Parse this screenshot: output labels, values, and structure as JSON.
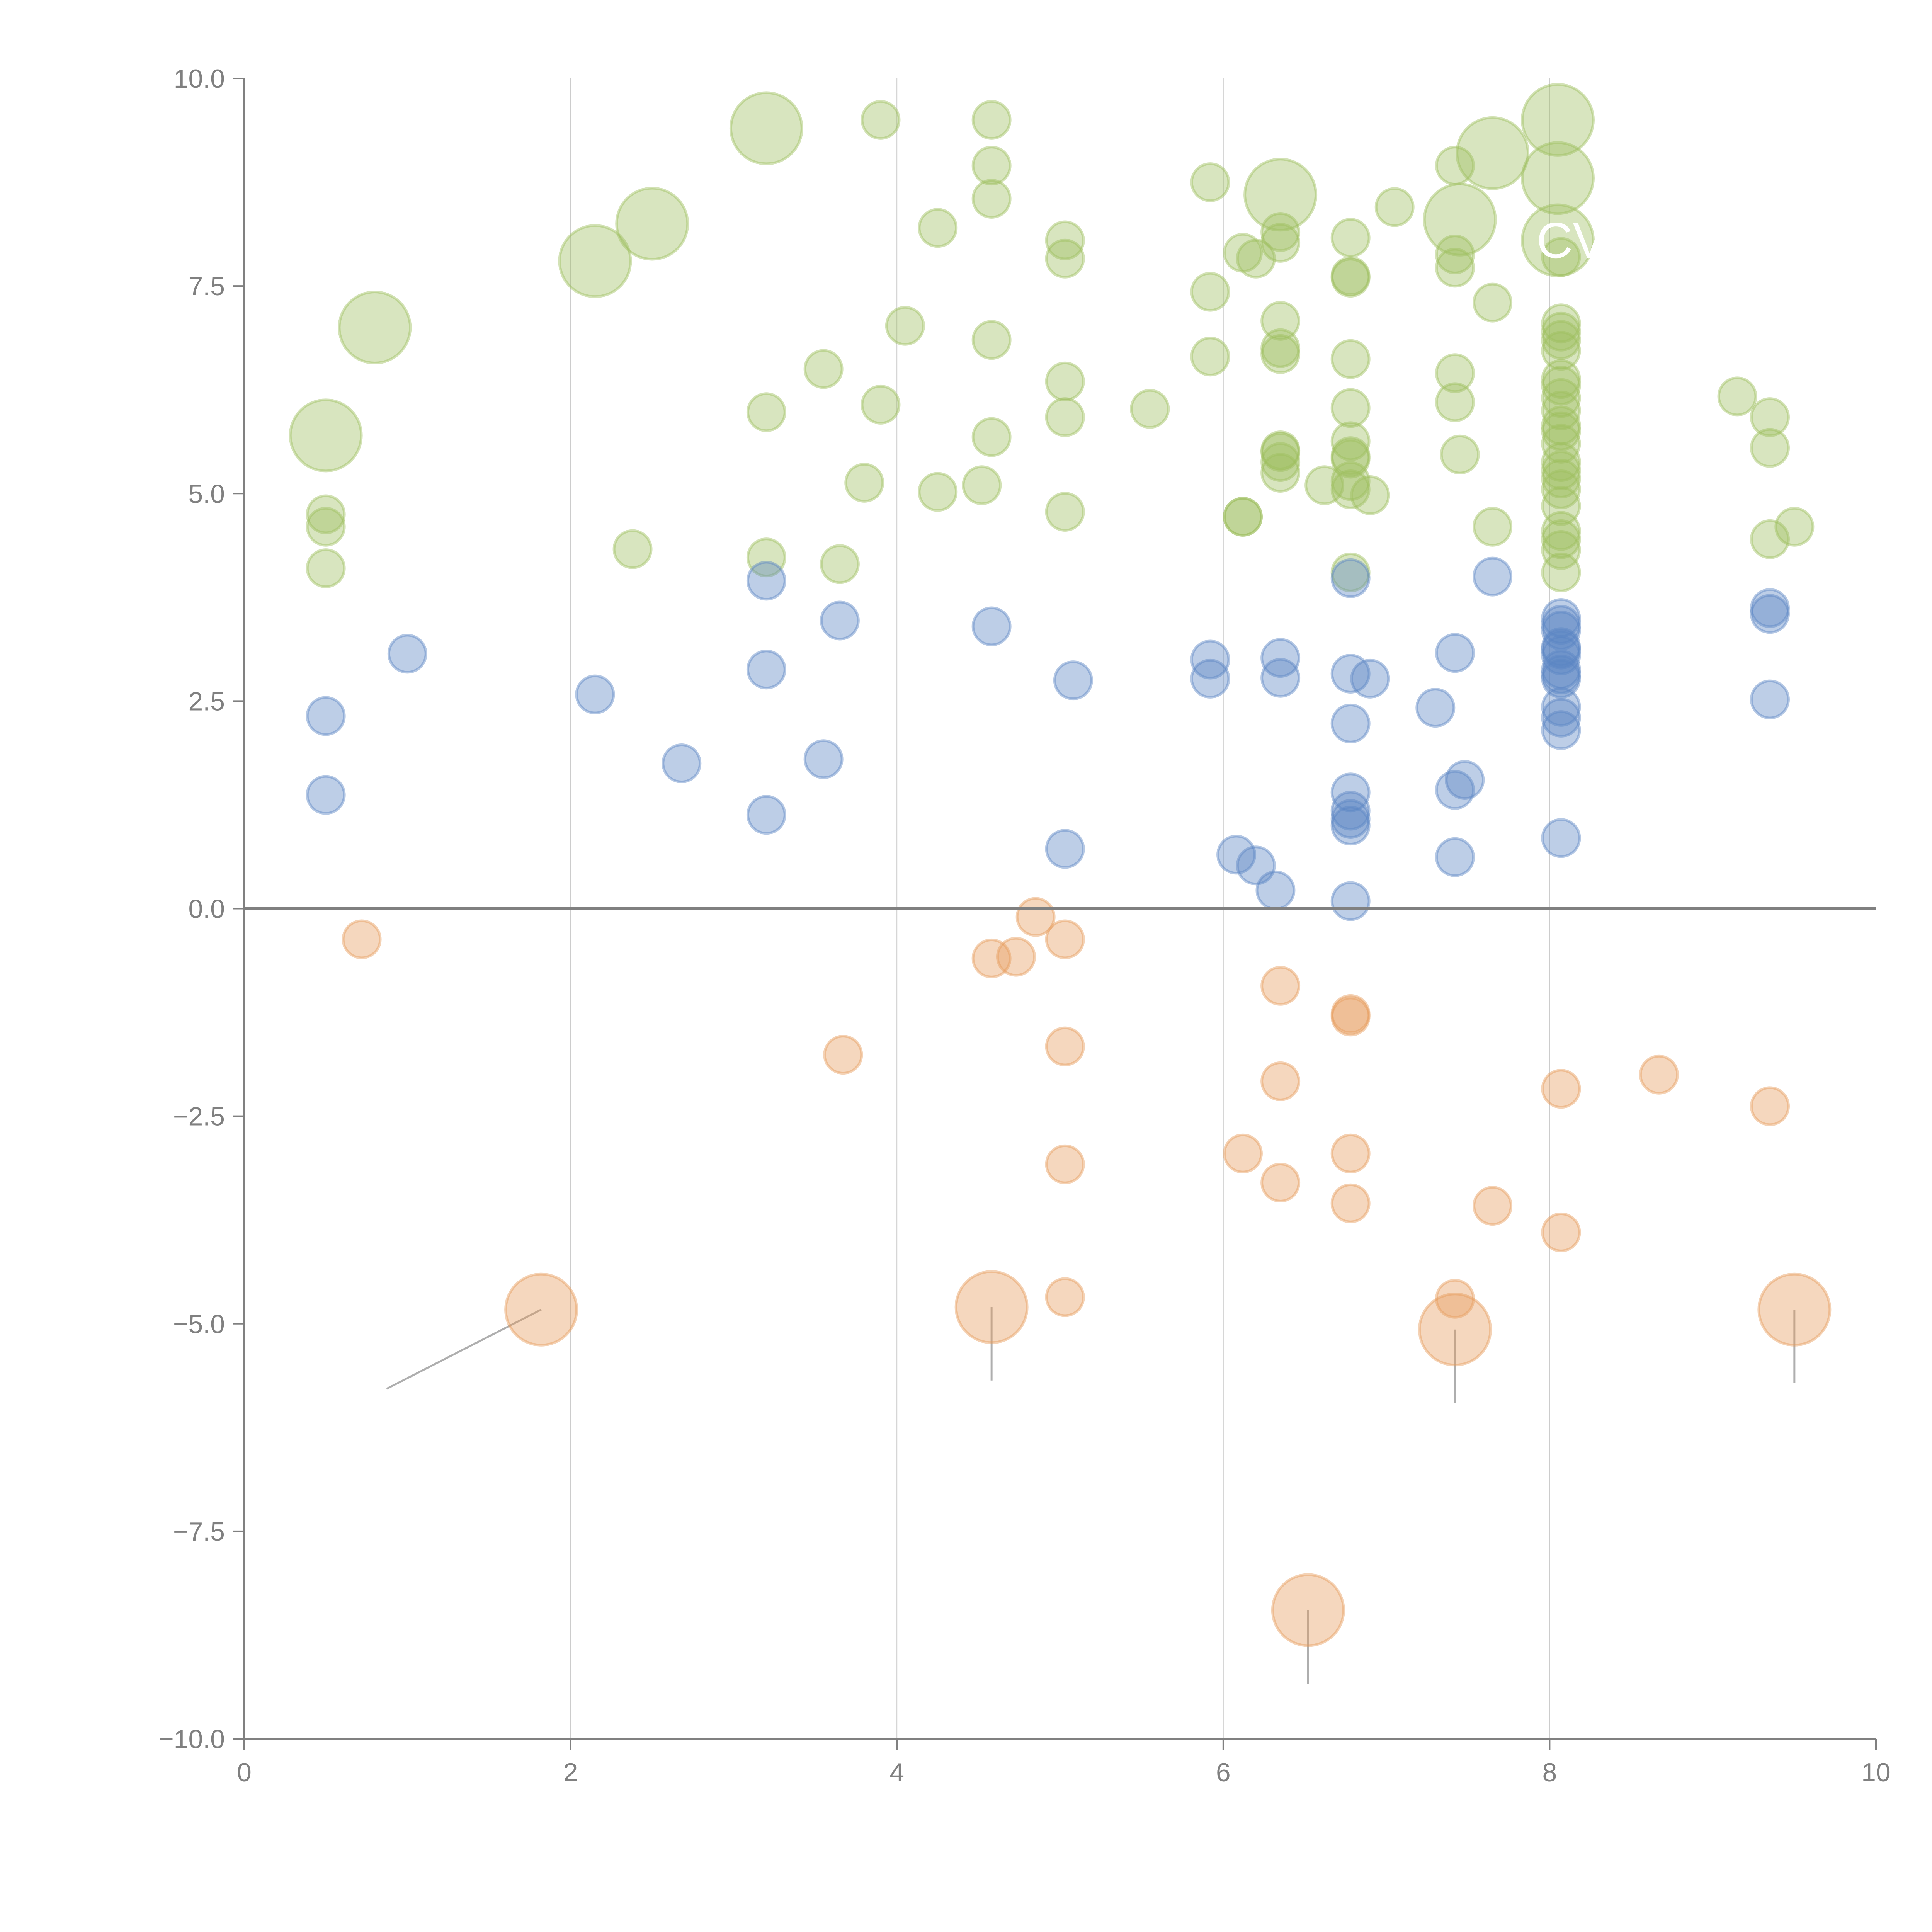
{
  "chart_data": {
    "type": "scatter",
    "title": "",
    "xlabel": "",
    "ylabel": "",
    "xlim": [
      0,
      10
    ],
    "ylim": [
      -10,
      10
    ],
    "x_ticks": [
      "0",
      "2",
      "4",
      "6",
      "8",
      "10"
    ],
    "y_ticks": [
      "10.0",
      "7.5",
      "5.0",
      "2.5",
      "0.0",
      "−2.5",
      "−5.0",
      "−7.5",
      "−10.0"
    ],
    "y_tick_values": [
      10,
      7.5,
      5,
      2.5,
      0,
      -2.5,
      -5,
      -7.5,
      -10
    ],
    "x_tick_values": [
      0,
      2,
      4,
      6,
      8,
      10
    ],
    "grid": "vertical at x ticks",
    "reference_line_y": 0,
    "legend": "none",
    "colors": {
      "green": "#9dbf5e",
      "blue": "#5b85c4",
      "orange": "#e69c5c"
    },
    "labels_visible": [
      "CV"
    ],
    "series": [
      {
        "name": "green",
        "color": "#9dbf5e",
        "points": [
          [
            0.5,
            5.7,
            "L"
          ],
          [
            0.8,
            7.0,
            "L"
          ],
          [
            2.15,
            7.8,
            "L"
          ],
          [
            2.5,
            8.25,
            "L"
          ],
          [
            3.2,
            9.4,
            "L"
          ],
          [
            6.35,
            8.6,
            "L"
          ],
          [
            7.45,
            8.3,
            "L"
          ],
          [
            7.65,
            9.1,
            "L"
          ],
          [
            8.05,
            9.5,
            "L"
          ],
          [
            8.05,
            8.8,
            "L"
          ],
          [
            8.05,
            8.05,
            "L"
          ],
          [
            0.5,
            4.75
          ],
          [
            0.5,
            4.6
          ],
          [
            0.5,
            4.1
          ],
          [
            2.38,
            4.33
          ],
          [
            3.2,
            5.98
          ],
          [
            3.2,
            4.23
          ],
          [
            3.55,
            6.5
          ],
          [
            3.65,
            4.15
          ],
          [
            3.8,
            5.13
          ],
          [
            3.9,
            6.07
          ],
          [
            3.9,
            9.5
          ],
          [
            4.05,
            7.02
          ],
          [
            4.25,
            5.02
          ],
          [
            4.25,
            8.2
          ],
          [
            4.52,
            5.1
          ],
          [
            4.58,
            9.5
          ],
          [
            4.58,
            8.95
          ],
          [
            4.58,
            8.55
          ],
          [
            4.58,
            6.85
          ],
          [
            4.58,
            5.68
          ],
          [
            5.03,
            8.05
          ],
          [
            5.03,
            7.83
          ],
          [
            5.03,
            6.35
          ],
          [
            5.03,
            5.92
          ],
          [
            5.03,
            4.78
          ],
          [
            5.55,
            6.02
          ],
          [
            5.92,
            8.75
          ],
          [
            5.92,
            7.43
          ],
          [
            5.92,
            6.65
          ],
          [
            6.12,
            7.9
          ],
          [
            6.12,
            4.72
          ],
          [
            6.12,
            4.72
          ],
          [
            6.2,
            7.83
          ],
          [
            6.35,
            8.15
          ],
          [
            6.35,
            8.02
          ],
          [
            6.35,
            7.08
          ],
          [
            6.35,
            6.75
          ],
          [
            6.35,
            6.68
          ],
          [
            6.35,
            5.52
          ],
          [
            6.35,
            5.5
          ],
          [
            6.35,
            5.38
          ],
          [
            6.35,
            5.25
          ],
          [
            6.62,
            5.1
          ],
          [
            6.78,
            8.08
          ],
          [
            6.78,
            7.62
          ],
          [
            6.78,
            7.6
          ],
          [
            6.78,
            6.62
          ],
          [
            6.78,
            6.03
          ],
          [
            6.78,
            5.63
          ],
          [
            6.78,
            5.45
          ],
          [
            6.78,
            5.42
          ],
          [
            6.78,
            5.15
          ],
          [
            6.78,
            5.05
          ],
          [
            6.78,
            4.05
          ],
          [
            6.9,
            4.98
          ],
          [
            7.05,
            8.45
          ],
          [
            7.42,
            8.95
          ],
          [
            7.42,
            7.88
          ],
          [
            7.42,
            7.72
          ],
          [
            7.42,
            6.45
          ],
          [
            7.42,
            6.1
          ],
          [
            7.45,
            5.47
          ],
          [
            7.65,
            7.3
          ],
          [
            7.65,
            4.6
          ],
          [
            8.07,
            7.85
          ],
          [
            8.07,
            7.05
          ],
          [
            8.07,
            6.95
          ],
          [
            8.07,
            6.85
          ],
          [
            8.07,
            6.72
          ],
          [
            8.07,
            6.38
          ],
          [
            8.07,
            6.3
          ],
          [
            8.07,
            6.15
          ],
          [
            8.07,
            6.0
          ],
          [
            8.07,
            5.82
          ],
          [
            8.07,
            5.75
          ],
          [
            8.07,
            5.6
          ],
          [
            8.07,
            5.38
          ],
          [
            8.07,
            5.28
          ],
          [
            8.07,
            5.18
          ],
          [
            8.07,
            5.05
          ],
          [
            8.07,
            4.85
          ],
          [
            8.07,
            4.55
          ],
          [
            8.07,
            4.45
          ],
          [
            8.07,
            4.32
          ],
          [
            8.07,
            4.05
          ],
          [
            9.15,
            6.17
          ],
          [
            9.35,
            5.92
          ],
          [
            9.35,
            5.55
          ],
          [
            9.35,
            4.45
          ],
          [
            9.5,
            4.6
          ]
        ]
      },
      {
        "name": "blue",
        "color": "#5b85c4",
        "points": [
          [
            0.5,
            2.32
          ],
          [
            0.5,
            1.37
          ],
          [
            1.0,
            3.07
          ],
          [
            2.15,
            2.58
          ],
          [
            2.68,
            1.75
          ],
          [
            3.2,
            3.95
          ],
          [
            3.2,
            2.88
          ],
          [
            3.2,
            1.13
          ],
          [
            3.55,
            1.8
          ],
          [
            3.65,
            3.47
          ],
          [
            4.58,
            3.4
          ],
          [
            5.03,
            0.72
          ],
          [
            5.08,
            2.75
          ],
          [
            5.92,
            3.0
          ],
          [
            5.92,
            2.77
          ],
          [
            6.08,
            0.65
          ],
          [
            6.2,
            0.52
          ],
          [
            6.32,
            0.22
          ],
          [
            6.35,
            3.02
          ],
          [
            6.35,
            2.78
          ],
          [
            6.78,
            3.98
          ],
          [
            6.78,
            2.83
          ],
          [
            6.78,
            2.23
          ],
          [
            6.78,
            1.4
          ],
          [
            6.78,
            1.18
          ],
          [
            6.78,
            1.08
          ],
          [
            6.78,
            1.0
          ],
          [
            6.78,
            0.09
          ],
          [
            6.9,
            2.77
          ],
          [
            7.3,
            2.42
          ],
          [
            7.42,
            3.08
          ],
          [
            7.42,
            1.43
          ],
          [
            7.42,
            0.62
          ],
          [
            7.48,
            1.55
          ],
          [
            7.65,
            4.0
          ],
          [
            8.07,
            3.5
          ],
          [
            8.07,
            3.42
          ],
          [
            8.07,
            3.35
          ],
          [
            8.07,
            3.15
          ],
          [
            8.07,
            3.12
          ],
          [
            8.07,
            3.05
          ],
          [
            8.07,
            2.88
          ],
          [
            8.07,
            2.82
          ],
          [
            8.07,
            2.77
          ],
          [
            8.07,
            2.43
          ],
          [
            8.07,
            2.3
          ],
          [
            8.07,
            2.15
          ],
          [
            8.07,
            0.85
          ],
          [
            9.35,
            3.62
          ],
          [
            9.35,
            3.55
          ],
          [
            9.35,
            2.52
          ]
        ]
      },
      {
        "name": "orange",
        "color": "#e69c5c",
        "points": [
          [
            1.82,
            -4.83,
            "L"
          ],
          [
            4.58,
            -4.8,
            "L"
          ],
          [
            7.42,
            -5.07,
            "L"
          ],
          [
            9.5,
            -4.83,
            "L"
          ],
          [
            6.52,
            -8.45,
            "L"
          ],
          [
            0.72,
            -0.37
          ],
          [
            3.67,
            -1.76
          ],
          [
            4.58,
            -0.6
          ],
          [
            4.73,
            -0.58
          ],
          [
            4.85,
            -0.1
          ],
          [
            5.03,
            -0.37
          ],
          [
            5.03,
            -1.66
          ],
          [
            5.03,
            -3.08
          ],
          [
            5.03,
            -4.68
          ],
          [
            6.12,
            -2.95
          ],
          [
            6.35,
            -0.93
          ],
          [
            6.35,
            -2.08
          ],
          [
            6.35,
            -3.3
          ],
          [
            6.78,
            -1.27
          ],
          [
            6.78,
            -1.3
          ],
          [
            6.78,
            -2.95
          ],
          [
            6.78,
            -3.55
          ],
          [
            7.42,
            -4.7
          ],
          [
            7.65,
            -3.58
          ],
          [
            8.07,
            -2.17
          ],
          [
            8.07,
            -3.9
          ],
          [
            8.67,
            -2.0
          ],
          [
            9.35,
            -2.38
          ]
        ]
      }
    ],
    "annotations": [
      {
        "text": "CV",
        "x": 8.05,
        "y": 8.05
      }
    ]
  }
}
